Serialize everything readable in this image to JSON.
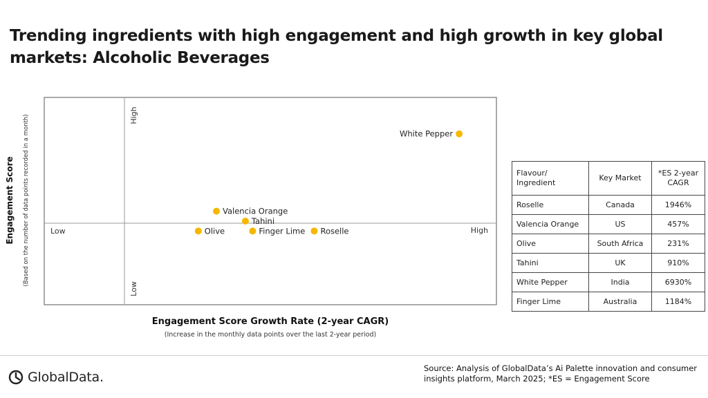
{
  "title": "Trending ingredients with high engagement and high growth in key global markets: Alcoholic Beverages",
  "chart_data": {
    "type": "scatter",
    "title": "Trending ingredients with high engagement and high growth in key global markets: Alcoholic Beverages",
    "xlabel": "Engagement Score Growth Rate (2-year CAGR)",
    "xlabel_sub": "(Increase in the monthly data points over the last 2-year period)",
    "ylabel": "Engagement Score",
    "ylabel_sub": "(Based on the number of data points recorded in a month)",
    "x_axis_low": "Low",
    "x_axis_high": "High",
    "y_axis_low": "Low",
    "y_axis_high": "High",
    "xlim": [
      0,
      100
    ],
    "ylim": [
      0,
      100
    ],
    "marker_color": "#F5B800",
    "points": [
      {
        "label": "White Pepper",
        "x": 92,
        "y": 90
      },
      {
        "label": "Valencia Orange",
        "x": 25,
        "y": 51
      },
      {
        "label": "Tahini",
        "x": 33,
        "y": 46
      },
      {
        "label": "Olive",
        "x": 20,
        "y": 41
      },
      {
        "label": "Finger Lime",
        "x": 35,
        "y": 41
      },
      {
        "label": "Roselle",
        "x": 52,
        "y": 41
      }
    ]
  },
  "table": {
    "headers": [
      "Flavour/ Ingredient",
      "Key Market",
      "*ES 2-year CAGR"
    ],
    "rows": [
      [
        "Roselle",
        "Canada",
        "1946%"
      ],
      [
        "Valencia Orange",
        "US",
        "457%"
      ],
      [
        "Olive",
        "South Africa",
        "231%"
      ],
      [
        "Tahini",
        "UK",
        "910%"
      ],
      [
        "White Pepper",
        "India",
        "6930%"
      ],
      [
        "Finger Lime",
        "Australia",
        "1184%"
      ]
    ]
  },
  "logo_text": "GlobalData.",
  "source": "Source: Analysis of GlobalData’s Ai Palette innovation and consumer insights platform, March 2025; *ES = Engagement Score"
}
